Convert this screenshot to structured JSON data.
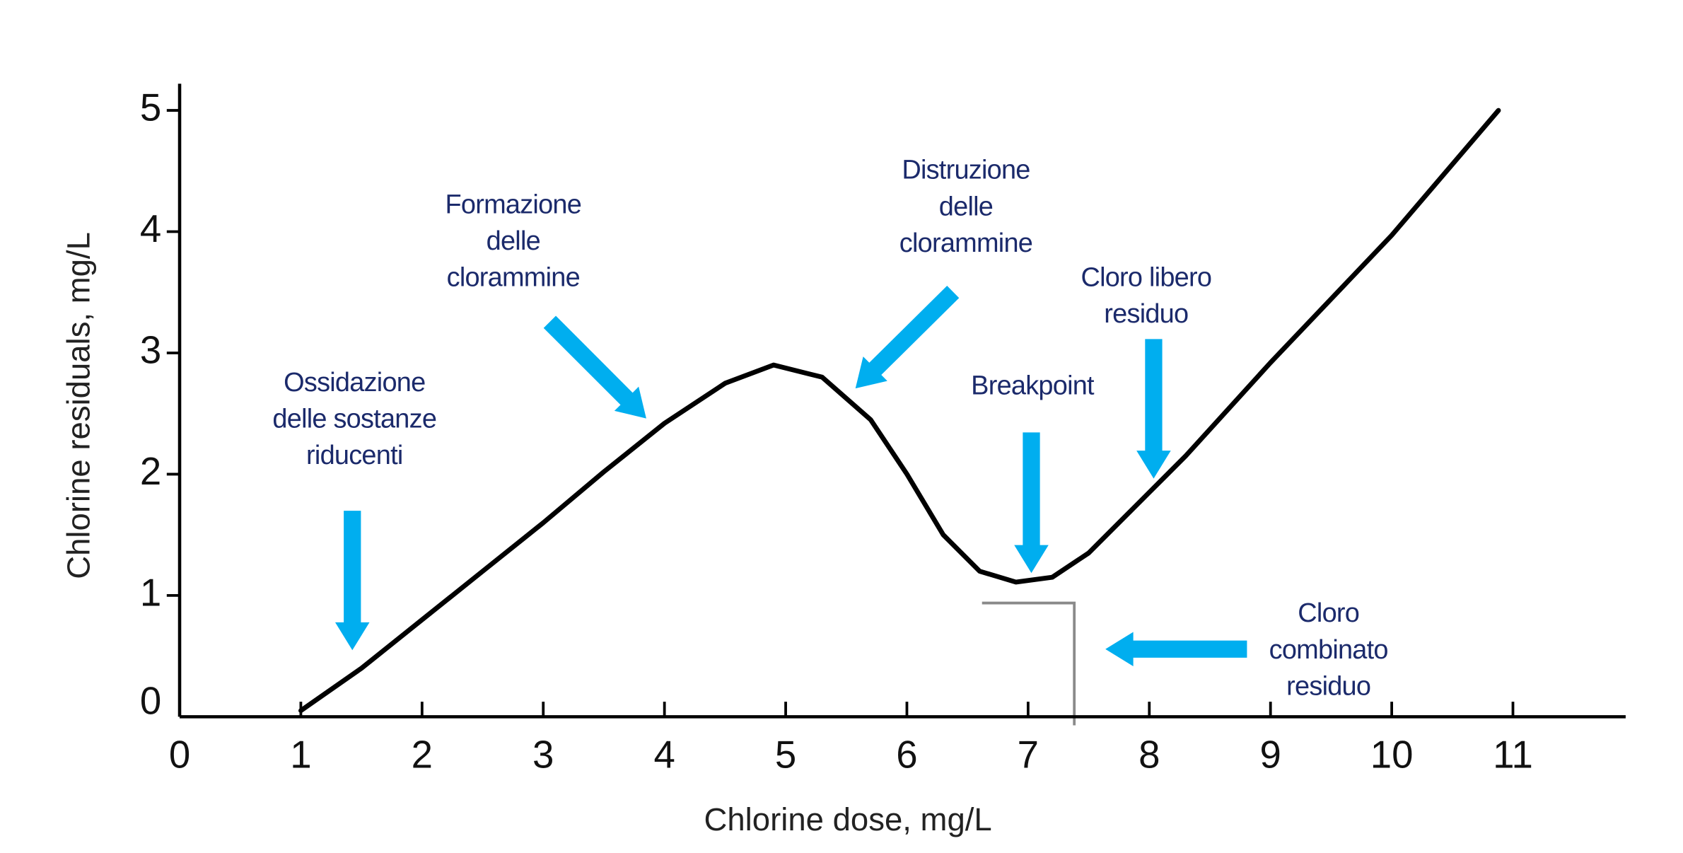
{
  "chart_data": {
    "type": "line",
    "xlabel": "Chlorine dose, mg/L",
    "ylabel": "Chlorine residuals, mg/L",
    "xlim": [
      0,
      11.93
    ],
    "ylim": [
      0,
      5.22
    ],
    "xticks": [
      0,
      1,
      2,
      3,
      4,
      5,
      6,
      7,
      8,
      9,
      10,
      11
    ],
    "yticks": [
      0,
      1,
      2,
      3,
      4,
      5
    ],
    "grid": false,
    "series": [
      {
        "color": "#000000",
        "x": [
          1.0,
          1.5,
          2.0,
          2.5,
          3.0,
          3.5,
          4.0,
          4.5,
          4.9,
          5.3,
          5.7,
          6.0,
          6.3,
          6.6,
          6.9,
          7.2,
          7.5,
          8.0,
          8.3,
          9.0,
          10.0,
          10.88
        ],
        "values": [
          0.05,
          0.4,
          0.8,
          1.2,
          1.6,
          2.02,
          2.42,
          2.75,
          2.9,
          2.8,
          2.45,
          2.0,
          1.5,
          1.2,
          1.11,
          1.15,
          1.35,
          1.85,
          2.15,
          2.92,
          3.97,
          5.0
        ]
      }
    ],
    "annotations": [
      {
        "lines": [
          "Ossidazione",
          "delle sostanze",
          "riducenti"
        ]
      },
      {
        "lines": [
          "Formazione",
          "delle",
          "clorammine"
        ]
      },
      {
        "lines": [
          "Distruzione",
          "delle",
          "clorammine"
        ]
      },
      {
        "lines": [
          "Cloro libero",
          "residuo"
        ]
      },
      {
        "lines": [
          "Breakpoint"
        ]
      },
      {
        "lines": [
          "Cloro",
          "combinato",
          "residuo"
        ]
      }
    ]
  }
}
